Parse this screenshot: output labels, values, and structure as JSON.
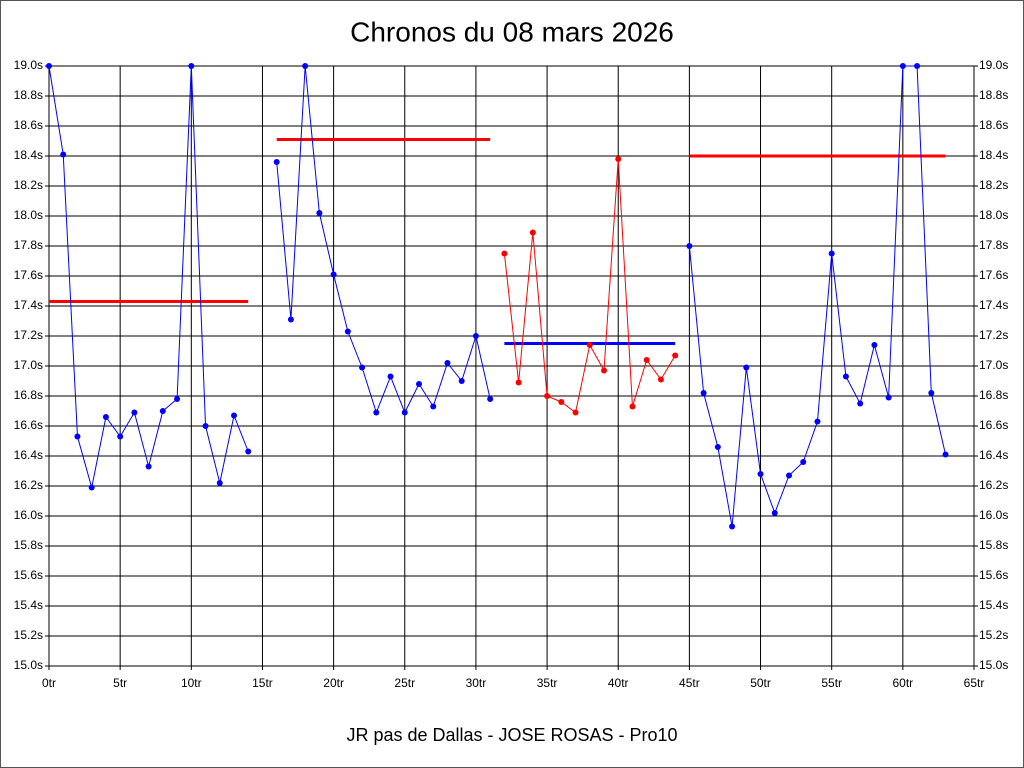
{
  "chart_data": {
    "type": "line",
    "title": "Chronos du 08 mars 2026",
    "xlabel": "JR pas de Dallas - JOSE ROSAS - Pro10",
    "x": [
      0,
      1,
      2,
      3,
      4,
      5,
      6,
      7,
      8,
      9,
      10,
      11,
      12,
      13,
      14,
      15,
      16,
      17,
      18,
      19,
      20,
      21,
      22,
      23,
      24,
      25,
      26,
      27,
      28,
      29,
      30,
      31,
      32,
      33,
      34,
      35,
      36,
      37,
      38,
      39,
      40,
      41,
      42,
      43,
      44,
      45,
      46,
      47,
      48,
      49,
      50,
      51,
      52,
      53,
      54,
      55,
      56,
      57,
      58,
      59,
      60,
      61,
      62,
      63
    ],
    "series": [
      {
        "color": "#0000ff",
        "values": [
          19.0,
          18.41,
          16.53,
          16.19,
          16.66,
          16.53,
          16.69,
          16.33,
          16.7,
          16.78,
          19.0,
          16.6,
          16.22,
          16.67,
          16.43,
          null,
          18.36,
          17.31,
          19.0,
          18.02,
          17.61,
          17.23,
          16.99,
          16.69,
          16.93,
          16.69,
          16.88,
          16.73,
          17.02,
          16.9,
          17.2,
          16.78,
          null,
          null,
          null,
          null,
          null,
          null,
          null,
          null,
          null,
          null,
          null,
          null,
          null,
          17.8,
          16.82,
          16.46,
          15.93,
          16.99,
          16.28,
          16.02,
          16.27,
          16.36,
          16.63,
          17.75,
          16.93,
          16.75,
          17.14,
          16.79,
          19.0,
          19.0,
          16.82,
          16.41
        ]
      },
      {
        "color": "#ff0000",
        "values": [
          null,
          null,
          null,
          null,
          null,
          null,
          null,
          null,
          null,
          null,
          null,
          null,
          null,
          null,
          null,
          null,
          null,
          null,
          null,
          null,
          null,
          null,
          null,
          null,
          null,
          null,
          null,
          null,
          null,
          null,
          null,
          null,
          17.75,
          16.89,
          17.89,
          16.8,
          16.76,
          16.69,
          17.14,
          16.97,
          18.38,
          16.73,
          17.04,
          16.91,
          17.07,
          null,
          null,
          null,
          null,
          null,
          null,
          null,
          null,
          null,
          null,
          null,
          null,
          null,
          null,
          null,
          null,
          null,
          null,
          null
        ]
      }
    ],
    "reference_lines": [
      {
        "color": "#ff0000",
        "xrange": [
          0,
          14
        ],
        "value": 17.43
      },
      {
        "color": "#ff0000",
        "xrange": [
          16,
          31
        ],
        "value": 18.51
      },
      {
        "color": "#0000ff",
        "xrange": [
          32,
          44
        ],
        "value": 17.15
      },
      {
        "color": "#ff0000",
        "xrange": [
          45,
          63
        ],
        "value": 18.4
      }
    ],
    "xlim": [
      0,
      65
    ],
    "xticks": [
      {
        "value": 0,
        "label": "0tr"
      },
      {
        "value": 5,
        "label": "5tr"
      },
      {
        "value": 10,
        "label": "10tr"
      },
      {
        "value": 15,
        "label": "15tr"
      },
      {
        "value": 20,
        "label": "20tr"
      },
      {
        "value": 25,
        "label": "25tr"
      },
      {
        "value": 30,
        "label": "30tr"
      },
      {
        "value": 35,
        "label": "35tr"
      },
      {
        "value": 40,
        "label": "40tr"
      },
      {
        "value": 45,
        "label": "45tr"
      },
      {
        "value": 50,
        "label": "50tr"
      },
      {
        "value": 55,
        "label": "55tr"
      },
      {
        "value": 60,
        "label": "60tr"
      },
      {
        "value": 65,
        "label": "65tr"
      }
    ],
    "ylim": [
      15.0,
      19.0
    ],
    "yticks": [
      {
        "value": 15.0,
        "label": "15.0s"
      },
      {
        "value": 15.2,
        "label": "15.2s"
      },
      {
        "value": 15.4,
        "label": "15.4s"
      },
      {
        "value": 15.6,
        "label": "15.6s"
      },
      {
        "value": 15.8,
        "label": "15.8s"
      },
      {
        "value": 16.0,
        "label": "16.0s"
      },
      {
        "value": 16.2,
        "label": "16.2s"
      },
      {
        "value": 16.4,
        "label": "16.4s"
      },
      {
        "value": 16.6,
        "label": "16.6s"
      },
      {
        "value": 16.8,
        "label": "16.8s"
      },
      {
        "value": 17.0,
        "label": "17.0s"
      },
      {
        "value": 17.2,
        "label": "17.2s"
      },
      {
        "value": 17.4,
        "label": "17.4s"
      },
      {
        "value": 17.6,
        "label": "17.6s"
      },
      {
        "value": 17.8,
        "label": "17.8s"
      },
      {
        "value": 18.0,
        "label": "18.0s"
      },
      {
        "value": 18.2,
        "label": "18.2s"
      },
      {
        "value": 18.4,
        "label": "18.4s"
      },
      {
        "value": 18.6,
        "label": "18.6s"
      },
      {
        "value": 18.8,
        "label": "18.8s"
      },
      {
        "value": 19.0,
        "label": "19.0s"
      }
    ],
    "grid": true,
    "right_axis": true
  }
}
